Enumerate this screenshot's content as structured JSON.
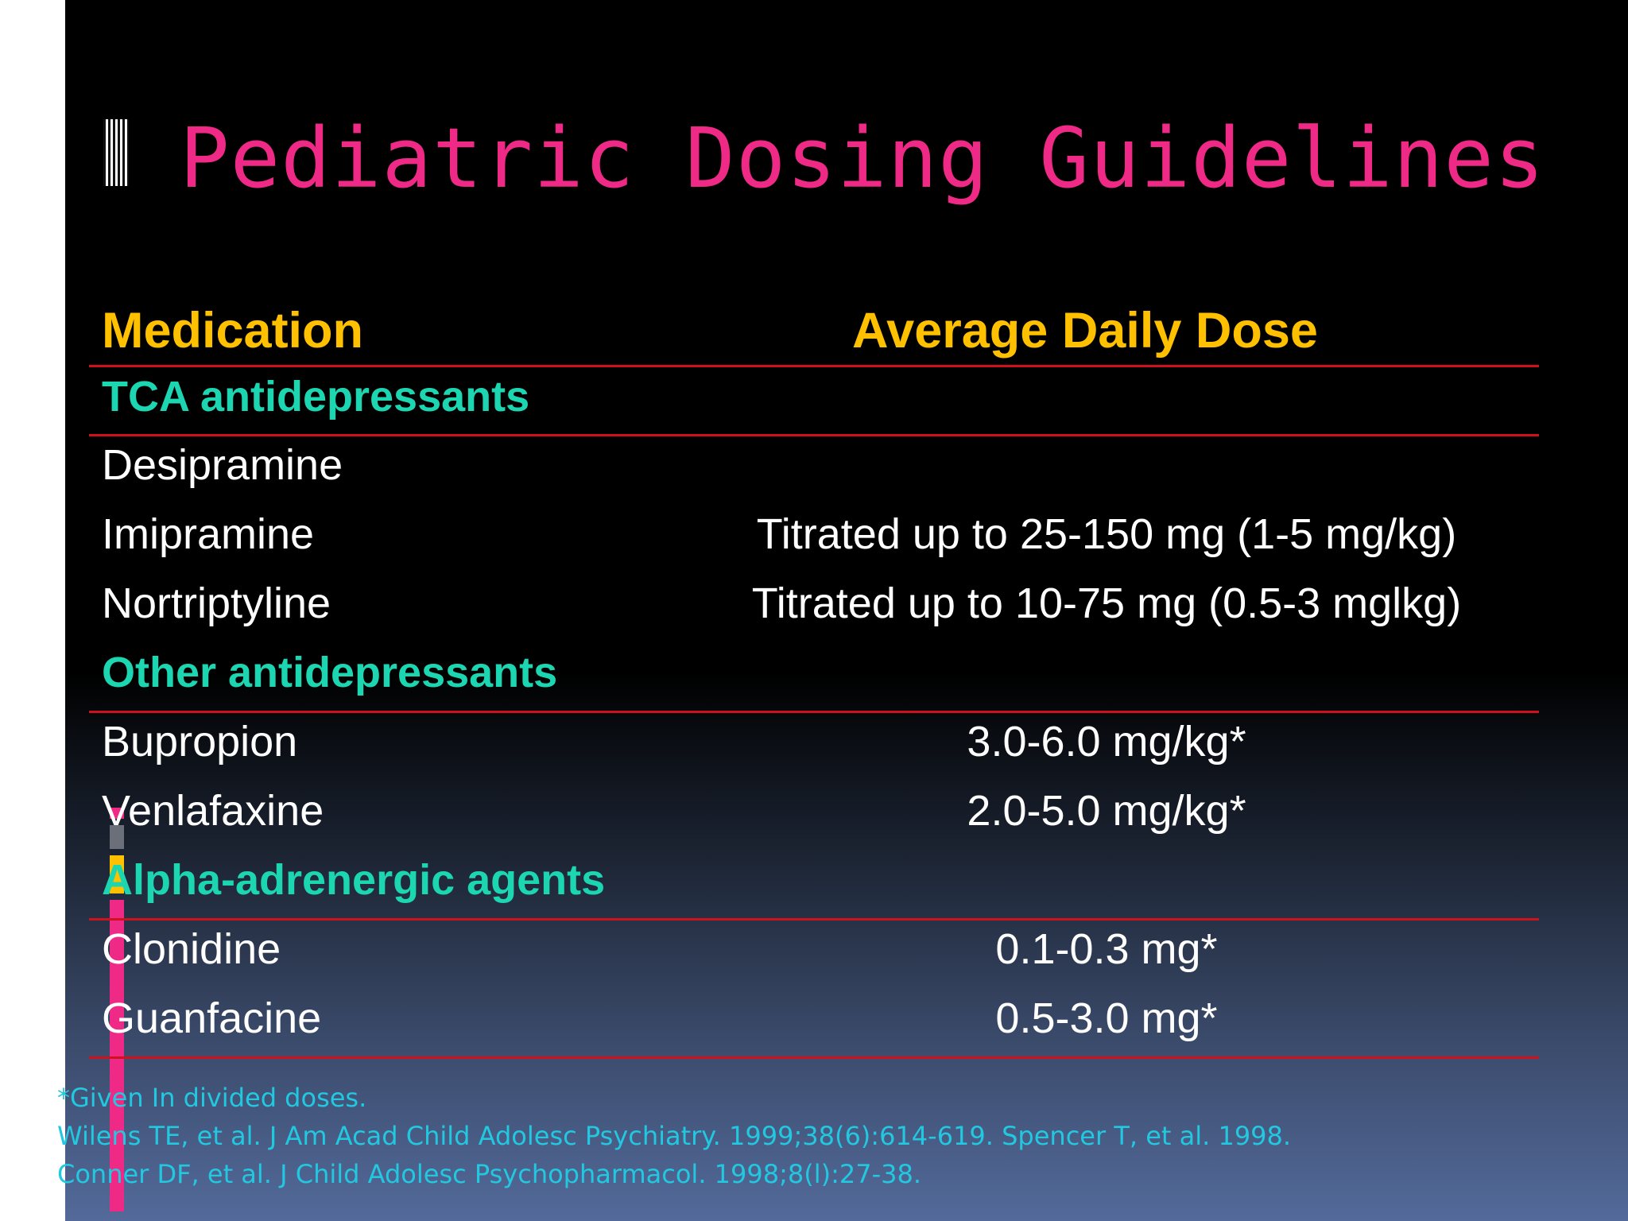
{
  "title": "Pediatric Dosing Guidelines",
  "table": {
    "headers": {
      "medication": "Medication",
      "dose": "Average Daily Dose"
    },
    "categories": [
      "TCA antidepressants",
      "Other antidepressants",
      "Alpha-adrenergic agents"
    ],
    "rows": [
      {
        "medication": "Desipramine",
        "dose": ""
      },
      {
        "medication": "Imipramine",
        "dose": "Titrated up to 25-150 mg (1-5 mg/kg)"
      },
      {
        "medication": "Nortriptyline",
        "dose": "Titrated up to 10-75 mg (0.5-3 mglkg)"
      },
      {
        "medication": "Bupropion",
        "dose": "3.0-6.0 mg/kg*"
      },
      {
        "medication": "Venlafaxine",
        "dose": "2.0-5.0 mg/kg*"
      },
      {
        "medication": "Clonidine",
        "dose": "0.1-0.3 mg*"
      },
      {
        "medication": "Guanfacine",
        "dose": "0.5-3.0 mg*"
      }
    ]
  },
  "footnotes": [
    "*Given In divided doses.",
    "Wilens TE, et al. J Am Acad Child Adolesc Psychiatry. 1999;38(6):614-619. Spencer T, et al. 1998.",
    "Conner DF, et al. J Child Adolesc Psychopharmacol. 1998;8(l):27-38."
  ],
  "colors": {
    "title": "#ee2a86",
    "header": "#ffc000",
    "category": "#1cd6b2",
    "rule": "#d0101a",
    "footnote": "#22c8e0",
    "accent_bars": [
      "#ee2a86",
      "#6a6f7a",
      "#ffc000",
      "#ee2a86"
    ]
  }
}
